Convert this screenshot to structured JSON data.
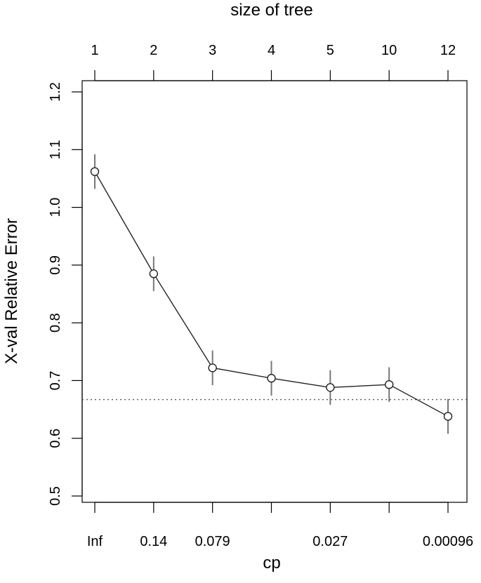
{
  "chart_data": {
    "type": "line",
    "top_axis_label": "size of tree",
    "xlabel": "cp",
    "ylabel": "X-val Relative Error",
    "top_ticks": [
      "1",
      "2",
      "3",
      "4",
      "5",
      "10",
      "12"
    ],
    "bottom_ticks": [
      "Inf",
      "0.14",
      "0.079",
      "",
      "0.027",
      "",
      "0.00096"
    ],
    "y_ticks": [
      "0.5",
      "0.6",
      "0.7",
      "0.8",
      "0.9",
      "1.0",
      "1.1",
      "1.2"
    ],
    "ylim": [
      0.5,
      1.2
    ],
    "grid": false,
    "series": [
      {
        "values": [
          1.062,
          0.885,
          0.722,
          0.704,
          0.688,
          0.693,
          0.638
        ],
        "error": [
          0.03,
          0.03,
          0.03,
          0.03,
          0.03,
          0.03,
          0.03
        ]
      }
    ],
    "reference_line": {
      "y": 0.667,
      "style": "dotted"
    }
  }
}
